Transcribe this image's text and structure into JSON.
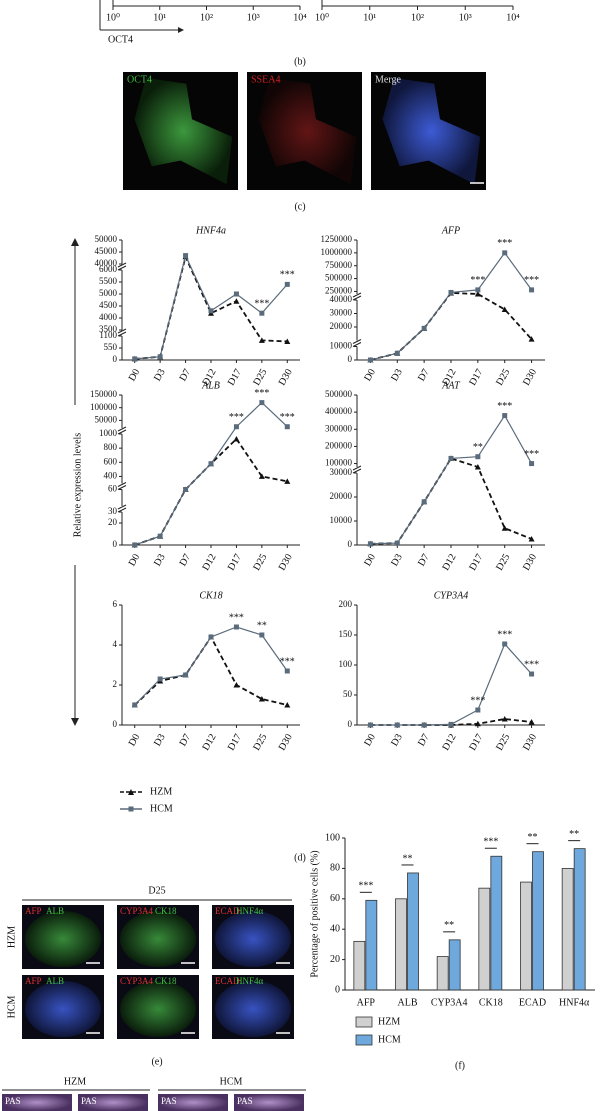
{
  "panel_b": {
    "label": "(b)",
    "x_axis_label": "OCT4",
    "axes": [
      {
        "log": true,
        "xlim": [
          1,
          10000
        ],
        "xticks": [
          {
            "value": 1,
            "label": "10⁰"
          },
          {
            "value": 10,
            "label": "10¹"
          },
          {
            "value": 100,
            "label": "10²"
          },
          {
            "value": 1000,
            "label": "10³"
          },
          {
            "value": 10000,
            "label": "10⁴"
          }
        ]
      },
      {
        "log": true,
        "xlim": [
          1,
          10000
        ],
        "xticks": [
          {
            "value": 1,
            "label": "10⁰"
          },
          {
            "value": 10,
            "label": "10¹"
          },
          {
            "value": 100,
            "label": "10²"
          },
          {
            "value": 1000,
            "label": "10³"
          },
          {
            "value": 10000,
            "label": "10⁴"
          }
        ]
      }
    ]
  },
  "panel_c": {
    "label": "(c)",
    "channels": [
      "OCT4",
      "SSEA4",
      "Merge"
    ]
  },
  "panel_d": {
    "label": "(d)",
    "y_axis_label": "Relative expression levels"
  },
  "chart_data": [
    {
      "type": "line",
      "title": "HNF4a",
      "categories": [
        "D0",
        "D3",
        "D7",
        "D12",
        "D17",
        "D25",
        "D30"
      ],
      "segments": [
        {
          "ylim": [
            0,
            1100
          ],
          "yticks": [
            0,
            550,
            1100
          ]
        },
        {
          "ylim": [
            3500,
            6000
          ],
          "yticks": [
            3500,
            4000,
            4500,
            5000,
            5500,
            6000
          ]
        },
        {
          "ylim": [
            40000,
            50000
          ],
          "yticks": [
            40000,
            45000,
            50000
          ]
        }
      ],
      "series": [
        {
          "name": "HZM",
          "color": "#111111",
          "values": [
            50,
            150,
            43000,
            4200,
            4700,
            900,
            850
          ]
        },
        {
          "name": "HCM",
          "color": "#5a6b7b",
          "values": [
            50,
            150,
            43500,
            4300,
            5000,
            4200,
            5400
          ]
        }
      ],
      "significance": [
        null,
        null,
        null,
        null,
        null,
        "***",
        "***"
      ]
    },
    {
      "type": "line",
      "title": "AFP",
      "categories": [
        "D0",
        "D3",
        "D7",
        "D12",
        "D17",
        "D25",
        "D30"
      ],
      "segments": [
        {
          "ylim": [
            0,
            10000
          ],
          "yticks": [
            0
          ]
        },
        {
          "ylim": [
            10000,
            40000
          ],
          "yticks": [
            10000,
            20000,
            30000,
            40000
          ]
        },
        {
          "ylim": [
            200000,
            1250000
          ],
          "yticks": [
            250000,
            500000,
            750000,
            1000000,
            1250000
          ]
        }
      ],
      "series": [
        {
          "name": "HZM",
          "color": "#111111",
          "values": [
            0,
            5000,
            19000,
            220000,
            200000,
            33000,
            11000
          ]
        },
        {
          "name": "HCM",
          "color": "#5a6b7b",
          "values": [
            0,
            5000,
            19000,
            230000,
            280000,
            1000000,
            280000
          ]
        }
      ],
      "significance": [
        null,
        null,
        null,
        null,
        "***",
        "***",
        "***"
      ]
    },
    {
      "type": "line",
      "title": "ALB",
      "categories": [
        "D0",
        "D3",
        "D7",
        "D12",
        "D17",
        "D25",
        "D30"
      ],
      "segments": [
        {
          "ylim": [
            0,
            30
          ],
          "yticks": [
            0,
            20,
            30
          ]
        },
        {
          "ylim": [
            40,
            60
          ],
          "yticks": [
            60
          ]
        },
        {
          "ylim": [
            300,
            1000
          ],
          "yticks": [
            400,
            600,
            800,
            1000
          ]
        },
        {
          "ylim": [
            20000,
            150000
          ],
          "yticks": [
            50000,
            100000,
            150000
          ]
        }
      ],
      "series": [
        {
          "name": "HZM",
          "color": "#111111",
          "values": [
            0,
            8,
            60,
            580,
            930,
            400,
            330
          ]
        },
        {
          "name": "HCM",
          "color": "#5a6b7b",
          "values": [
            0,
            8,
            60,
            580,
            25000,
            120000,
            25000
          ]
        }
      ],
      "significance": [
        null,
        null,
        null,
        null,
        "***",
        "***",
        "***"
      ]
    },
    {
      "type": "line",
      "title": "AAT",
      "categories": [
        "D0",
        "D3",
        "D7",
        "D12",
        "D17",
        "D25",
        "D30"
      ],
      "segments": [
        {
          "ylim": [
            0,
            30000
          ],
          "yticks": [
            0,
            10000,
            20000,
            30000
          ]
        },
        {
          "ylim": [
            80000,
            500000
          ],
          "yticks": [
            100000,
            200000,
            300000,
            400000,
            500000
          ]
        }
      ],
      "series": [
        {
          "name": "HZM",
          "color": "#111111",
          "values": [
            500,
            800,
            18000,
            130000,
            80000,
            7000,
            2500
          ]
        },
        {
          "name": "HCM",
          "color": "#5a6b7b",
          "values": [
            500,
            800,
            18000,
            130000,
            140000,
            380000,
            100000
          ]
        }
      ],
      "significance": [
        null,
        null,
        null,
        null,
        "**",
        "***",
        "***"
      ]
    },
    {
      "type": "line",
      "title": "CK18",
      "categories": [
        "D0",
        "D3",
        "D7",
        "D12",
        "D17",
        "D25",
        "D30"
      ],
      "segments": [
        {
          "ylim": [
            0,
            6
          ],
          "yticks": [
            0,
            2,
            4,
            6
          ]
        }
      ],
      "series": [
        {
          "name": "HZM",
          "color": "#111111",
          "values": [
            1,
            2.2,
            2.5,
            4.4,
            2,
            1.3,
            1
          ]
        },
        {
          "name": "HCM",
          "color": "#5a6b7b",
          "values": [
            1,
            2.3,
            2.5,
            4.4,
            4.9,
            4.5,
            2.7
          ]
        }
      ],
      "significance": [
        null,
        null,
        null,
        null,
        "***",
        "**",
        "***"
      ]
    },
    {
      "type": "line",
      "title": "CYP3A4",
      "categories": [
        "D0",
        "D3",
        "D7",
        "D12",
        "D17",
        "D25",
        "D30"
      ],
      "segments": [
        {
          "ylim": [
            0,
            200
          ],
          "yticks": [
            0,
            50,
            100,
            150,
            200
          ]
        }
      ],
      "series": [
        {
          "name": "HZM",
          "color": "#111111",
          "values": [
            0,
            0,
            0,
            0,
            2,
            10,
            5
          ]
        },
        {
          "name": "HCM",
          "color": "#5a6b7b",
          "values": [
            0,
            0,
            0,
            1,
            25,
            135,
            85
          ]
        }
      ],
      "significance": [
        null,
        null,
        null,
        null,
        "***",
        "***",
        "***"
      ]
    },
    {
      "type": "bar",
      "label": "(f)",
      "y_axis_label": "Percentage of positive cells (%)",
      "categories": [
        "AFP",
        "ALB",
        "CYP3A4",
        "CK18",
        "ECAD",
        "HNF4α"
      ],
      "ylim": [
        0,
        100
      ],
      "yticks": [
        0,
        20,
        40,
        60,
        80,
        100
      ],
      "series": [
        {
          "name": "HZM",
          "color": "#d0d0d0",
          "values": [
            32,
            60,
            22,
            67,
            71,
            80
          ]
        },
        {
          "name": "HCM",
          "color": "#6fa8dc",
          "values": [
            59,
            77,
            33,
            88,
            91,
            93
          ]
        }
      ],
      "significance": [
        "***",
        "**",
        "**",
        "***",
        "**",
        "**"
      ]
    }
  ],
  "panel_e": {
    "label": "(e)",
    "timepoint": "D25",
    "rows": [
      "HZM",
      "HCM"
    ],
    "stains": [
      [
        "AFP",
        "ALB"
      ],
      [
        "CYP3A4",
        "CK18"
      ],
      [
        "ECAD",
        "HNF4α"
      ]
    ]
  },
  "panel_g": {
    "groups": [
      "HZM",
      "HCM"
    ],
    "stain": "PAS"
  }
}
